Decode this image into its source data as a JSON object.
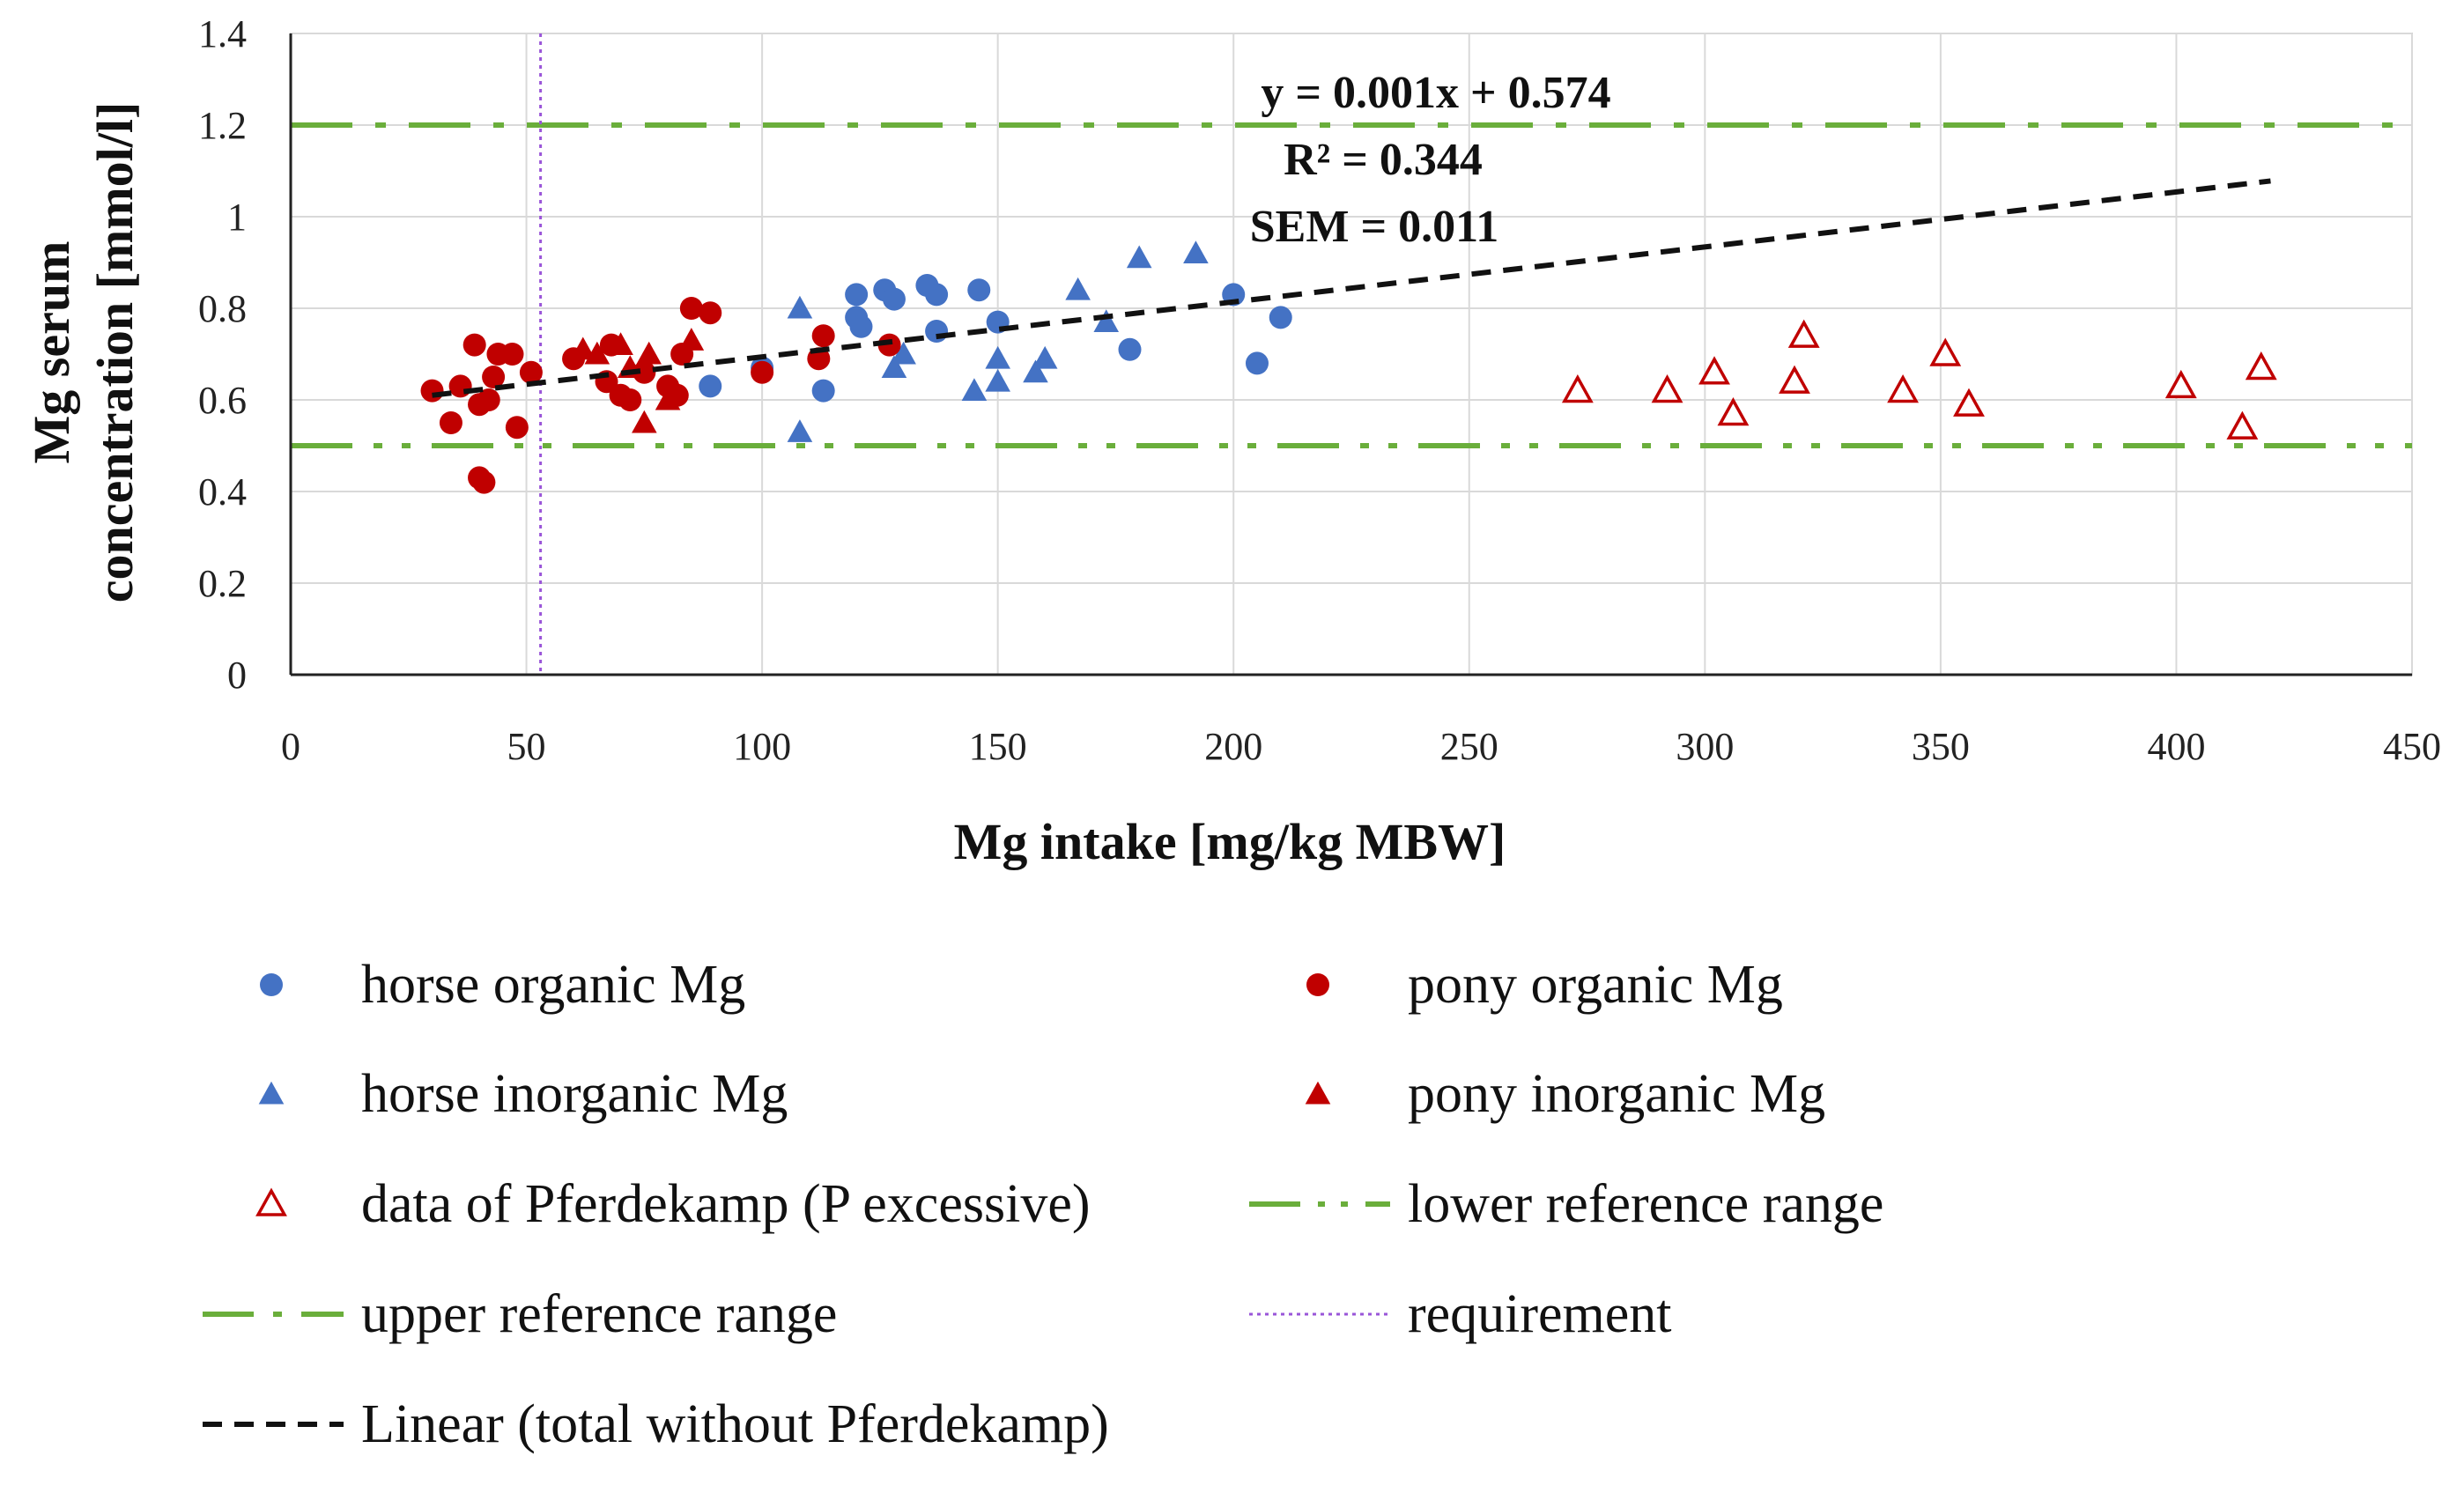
{
  "chart_data": {
    "type": "scatter",
    "xlabel": "Mg intake [mg/kg MBW]",
    "ylabel_line1": "Mg serum",
    "ylabel_line2": "concentration [mmol/l]",
    "xlim": [
      0,
      450
    ],
    "ylim": [
      0,
      1.4
    ],
    "x_ticks": [
      "0",
      "50",
      "100",
      "150",
      "200",
      "250",
      "300",
      "350",
      "400",
      "450"
    ],
    "y_ticks": [
      "0",
      "0.2",
      "0.4",
      "0.6",
      "0.8",
      "1",
      "1.2",
      "1.4"
    ],
    "grid": true,
    "annotations": {
      "equation": "y = 0.001x + 0.574",
      "r_squared": "R² = 0.344",
      "sem": "SEM = 0.011"
    },
    "reference_lines": {
      "upper": 1.2,
      "lower": 0.5,
      "requirement": 53,
      "color": "#6aae3b",
      "requirement_color": "#9a55d8"
    },
    "trendline": {
      "slope": 0.0012,
      "intercept": 0.574,
      "x_start": 30,
      "x_end": 420
    },
    "series": [
      {
        "name": "horse organic Mg",
        "marker": "circle",
        "color": "#4472c4",
        "points": [
          [
            89,
            0.63
          ],
          [
            100,
            0.67
          ],
          [
            113,
            0.62
          ],
          [
            120,
            0.83
          ],
          [
            120,
            0.78
          ],
          [
            121,
            0.76
          ],
          [
            126,
            0.84
          ],
          [
            128,
            0.82
          ],
          [
            135,
            0.85
          ],
          [
            137,
            0.83
          ],
          [
            137,
            0.75
          ],
          [
            146,
            0.84
          ],
          [
            150,
            0.77
          ],
          [
            178,
            0.71
          ],
          [
            200,
            0.83
          ],
          [
            205,
            0.68
          ],
          [
            210,
            0.78
          ]
        ]
      },
      {
        "name": "horse inorganic Mg",
        "marker": "triangle",
        "color": "#4472c4",
        "points": [
          [
            108,
            0.53
          ],
          [
            108,
            0.8
          ],
          [
            128,
            0.67
          ],
          [
            130,
            0.7
          ],
          [
            145,
            0.62
          ],
          [
            150,
            0.64
          ],
          [
            150,
            0.69
          ],
          [
            158,
            0.66
          ],
          [
            160,
            0.69
          ],
          [
            167,
            0.84
          ],
          [
            173,
            0.77
          ],
          [
            180,
            0.91
          ],
          [
            192,
            0.92
          ]
        ]
      },
      {
        "name": "pony organic Mg",
        "marker": "circle",
        "color": "#c00000",
        "points": [
          [
            30,
            0.62
          ],
          [
            34,
            0.55
          ],
          [
            36,
            0.63
          ],
          [
            39,
            0.72
          ],
          [
            40,
            0.59
          ],
          [
            40,
            0.43
          ],
          [
            41,
            0.42
          ],
          [
            42,
            0.6
          ],
          [
            43,
            0.65
          ],
          [
            44,
            0.7
          ],
          [
            47,
            0.7
          ],
          [
            48,
            0.54
          ],
          [
            51,
            0.66
          ],
          [
            60,
            0.69
          ],
          [
            67,
            0.64
          ],
          [
            68,
            0.72
          ],
          [
            70,
            0.61
          ],
          [
            72,
            0.6
          ],
          [
            75,
            0.66
          ],
          [
            80,
            0.63
          ],
          [
            82,
            0.61
          ],
          [
            83,
            0.7
          ],
          [
            85,
            0.8
          ],
          [
            89,
            0.79
          ],
          [
            100,
            0.66
          ],
          [
            112,
            0.69
          ],
          [
            113,
            0.74
          ],
          [
            127,
            0.72
          ]
        ]
      },
      {
        "name": "pony inorganic Mg",
        "marker": "triangle",
        "color": "#c00000",
        "points": [
          [
            62,
            0.71
          ],
          [
            65,
            0.7
          ],
          [
            70,
            0.72
          ],
          [
            72,
            0.67
          ],
          [
            75,
            0.55
          ],
          [
            76,
            0.7
          ],
          [
            80,
            0.6
          ],
          [
            85,
            0.73
          ]
        ]
      },
      {
        "name": "data of Pferdekamp (P excessive)",
        "marker": "triangle-open",
        "color": "#c00000",
        "points": [
          [
            273,
            0.62
          ],
          [
            292,
            0.62
          ],
          [
            302,
            0.66
          ],
          [
            306,
            0.57
          ],
          [
            319,
            0.64
          ],
          [
            321,
            0.74
          ],
          [
            342,
            0.62
          ],
          [
            351,
            0.7
          ],
          [
            356,
            0.59
          ],
          [
            401,
            0.63
          ],
          [
            414,
            0.54
          ],
          [
            418,
            0.67
          ]
        ]
      }
    ],
    "legend": [
      {
        "label": "horse organic Mg",
        "symbol": "circle",
        "color": "#4472c4"
      },
      {
        "label": "pony organic Mg",
        "symbol": "circle",
        "color": "#c00000"
      },
      {
        "label": "horse inorganic Mg",
        "symbol": "triangle",
        "color": "#4472c4"
      },
      {
        "label": "pony inorganic Mg",
        "symbol": "triangle",
        "color": "#c00000"
      },
      {
        "label": "data of Pferdekamp (P excessive)",
        "symbol": "triangle-open",
        "color": "#c00000"
      },
      {
        "label": "lower reference range",
        "symbol": "dash-dot-dot",
        "color": "#6aae3b"
      },
      {
        "label": "upper reference range",
        "symbol": "dash-dot",
        "color": "#6aae3b"
      },
      {
        "label": "requirement",
        "symbol": "dotted",
        "color": "#9a55d8"
      },
      {
        "label": "Linear (total without Pferdekamp)",
        "symbol": "dashed",
        "color": "#111111"
      }
    ]
  }
}
